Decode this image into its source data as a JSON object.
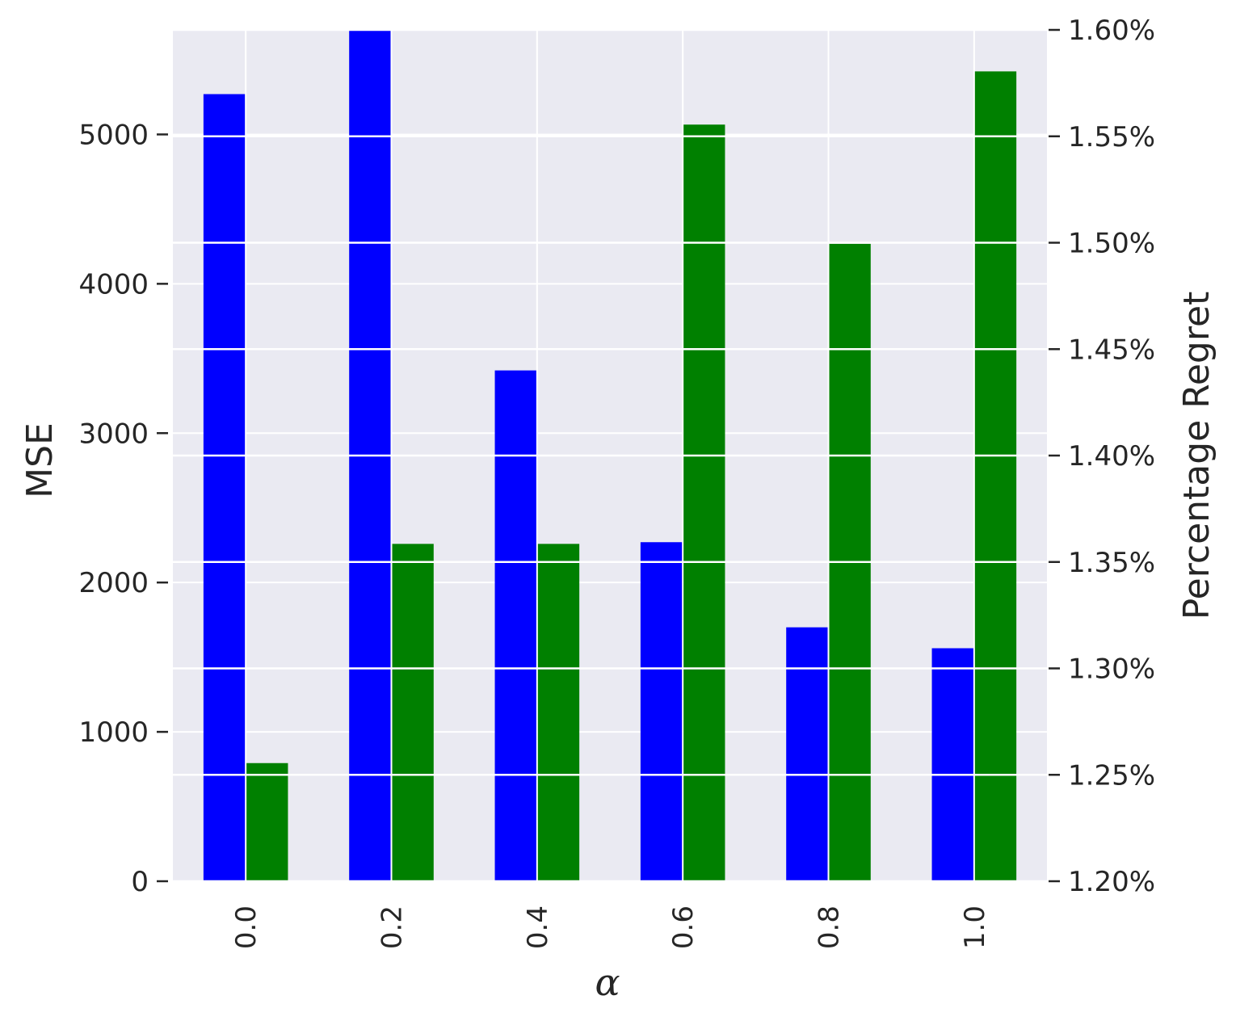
{
  "chart_data": {
    "type": "bar",
    "categories": [
      "0.0",
      "0.2",
      "0.4",
      "0.6",
      "0.8",
      "1.0"
    ],
    "xlabel": "α",
    "series": [
      {
        "axis": "left",
        "color": "#0000ff",
        "values": [
          5270,
          5720,
          3420,
          2270,
          1700,
          1560
        ]
      },
      {
        "axis": "right",
        "color": "#008000",
        "values": [
          1.2555,
          1.3585,
          1.3585,
          1.5555,
          1.4995,
          1.5805
        ]
      }
    ],
    "left_axis": {
      "label": "MSE",
      "ylim": [
        0,
        5700
      ],
      "ticks": [
        0,
        1000,
        2000,
        3000,
        4000,
        5000
      ],
      "tick_labels": [
        "0",
        "1000",
        "2000",
        "3000",
        "4000",
        "5000"
      ]
    },
    "right_axis": {
      "label": "Percentage Regret",
      "ylim": [
        1.2,
        1.6
      ],
      "ticks": [
        1.2,
        1.25,
        1.3,
        1.35,
        1.4,
        1.45,
        1.5,
        1.55,
        1.6
      ],
      "tick_labels": [
        "1.20%",
        "1.25%",
        "1.30%",
        "1.35%",
        "1.40%",
        "1.45%",
        "1.50%",
        "1.55%",
        "1.60%"
      ]
    },
    "grid": true,
    "background_color": "#eaeaf2",
    "grid_color": "#ffffff"
  }
}
